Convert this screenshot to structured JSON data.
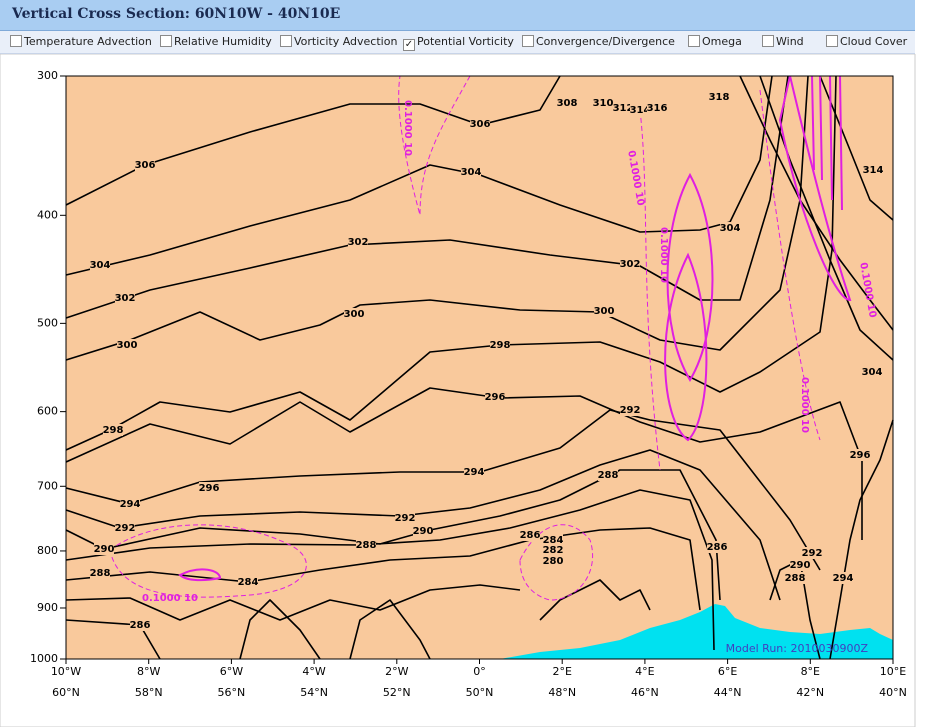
{
  "header": {
    "title": "Vertical Cross Section: 60N10W - 40N10E"
  },
  "options": [
    {
      "label": "Temperature Advection",
      "checked": false
    },
    {
      "label": "Relative Humidity",
      "checked": false
    },
    {
      "label": "Vorticity Advection",
      "checked": false
    },
    {
      "label": "Potential Vorticity",
      "checked": true
    },
    {
      "label": "Convergence/Divergence",
      "checked": false
    },
    {
      "label": "Omega",
      "checked": false
    },
    {
      "label": "Wind",
      "checked": false
    },
    {
      "label": "Cloud Cover",
      "checked": false
    }
  ],
  "chart_data": {
    "type": "contour",
    "ylim": [
      1000,
      300
    ],
    "yticks": [
      300,
      400,
      500,
      600,
      700,
      800,
      900,
      1000
    ],
    "log_y": true,
    "x_categories": [
      "10°W",
      "8°W",
      "6°W",
      "4°W",
      "2°W",
      "0°",
      "2°E",
      "4°E",
      "6°E",
      "8°E",
      "10°E"
    ],
    "x_categories_2": [
      "60°N",
      "58°N",
      "56°N",
      "54°N",
      "52°N",
      "50°N",
      "48°N",
      "46°N",
      "44°N",
      "42°N",
      "40°N"
    ],
    "contour_labels": [
      306,
      304,
      302,
      300,
      298,
      294,
      296,
      292,
      290,
      288,
      284,
      286,
      302,
      300,
      304,
      306,
      308,
      310,
      312,
      314,
      316,
      318,
      298,
      296,
      294,
      292,
      290,
      288,
      288,
      292,
      302,
      300,
      304,
      286,
      288,
      290,
      292,
      294,
      296,
      304,
      314,
      286,
      284,
      282,
      280
    ],
    "pv_labels": [
      "0.1000 10",
      "0.1000 10",
      "0.1000 10",
      "0.1000 10",
      "0.1000 10",
      "0.1000 10"
    ],
    "annotation": "Model Run: 2010030900Z",
    "background_color": "#f9c99c",
    "terrain_color": "#00e1f0",
    "contour_color": "#000000",
    "pv_color": "#e020e0"
  }
}
